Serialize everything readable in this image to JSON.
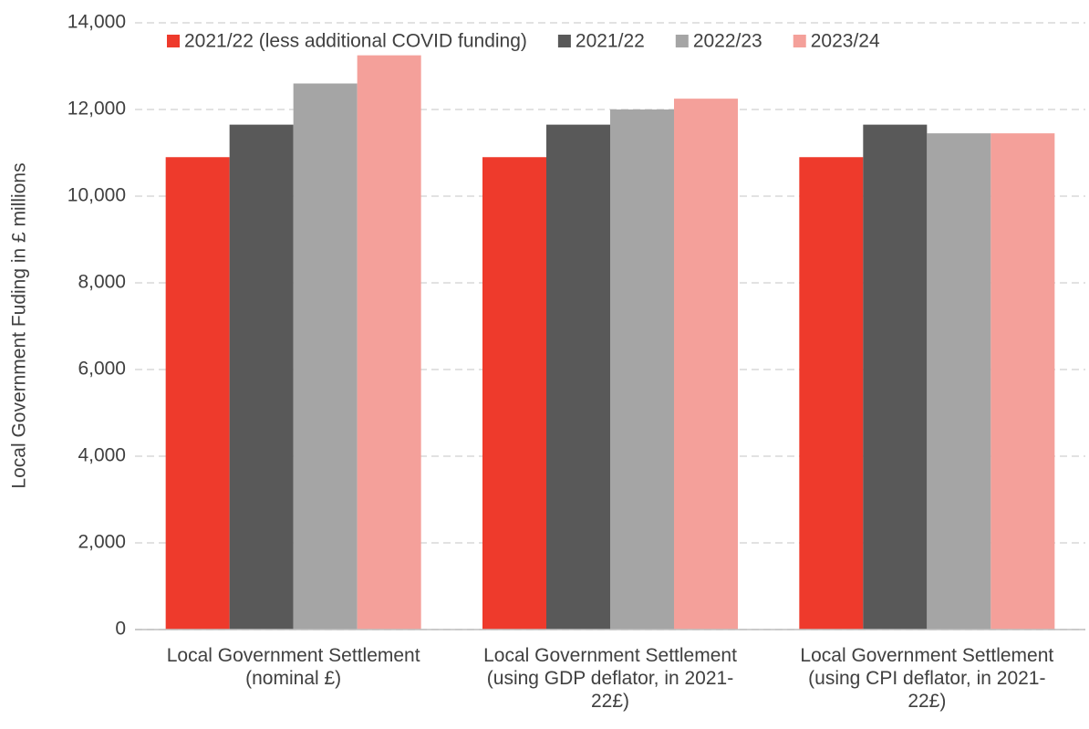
{
  "chart_data": {
    "type": "bar",
    "ylabel": "Local Government  Fuding in £ millions",
    "categories": [
      "Local Government Settlement (nominal £)",
      "Local Government Settlement (using GDP deflator, in 2021-22£)",
      "Local Government Settlement (using CPI deflator, in 2021-22£)"
    ],
    "series": [
      {
        "name": "2021/22 (less additional COVID funding)",
        "color": "#ee3a2c",
        "values": [
          10900,
          10900,
          10900
        ]
      },
      {
        "name": "2021/22",
        "color": "#595959",
        "values": [
          11650,
          11650,
          11650
        ]
      },
      {
        "name": "2022/23",
        "color": "#a5a5a5",
        "values": [
          12600,
          12000,
          11450
        ]
      },
      {
        "name": "2023/24",
        "color": "#f4a09a",
        "values": [
          13250,
          12250,
          11450
        ]
      }
    ],
    "ylim": [
      0,
      14000
    ],
    "yticks": [
      0,
      {
        "value": 2000,
        "label": "2,000"
      },
      {
        "value": 4000,
        "label": "4,000"
      },
      {
        "value": 6000,
        "label": "6,000"
      },
      {
        "value": 8000,
        "label": "8,000"
      },
      {
        "value": 10000,
        "label": "10,000"
      },
      {
        "value": 12000,
        "label": "12,000"
      },
      {
        "value": 14000,
        "label": "14,000"
      }
    ],
    "grid": true,
    "legend": "top"
  }
}
